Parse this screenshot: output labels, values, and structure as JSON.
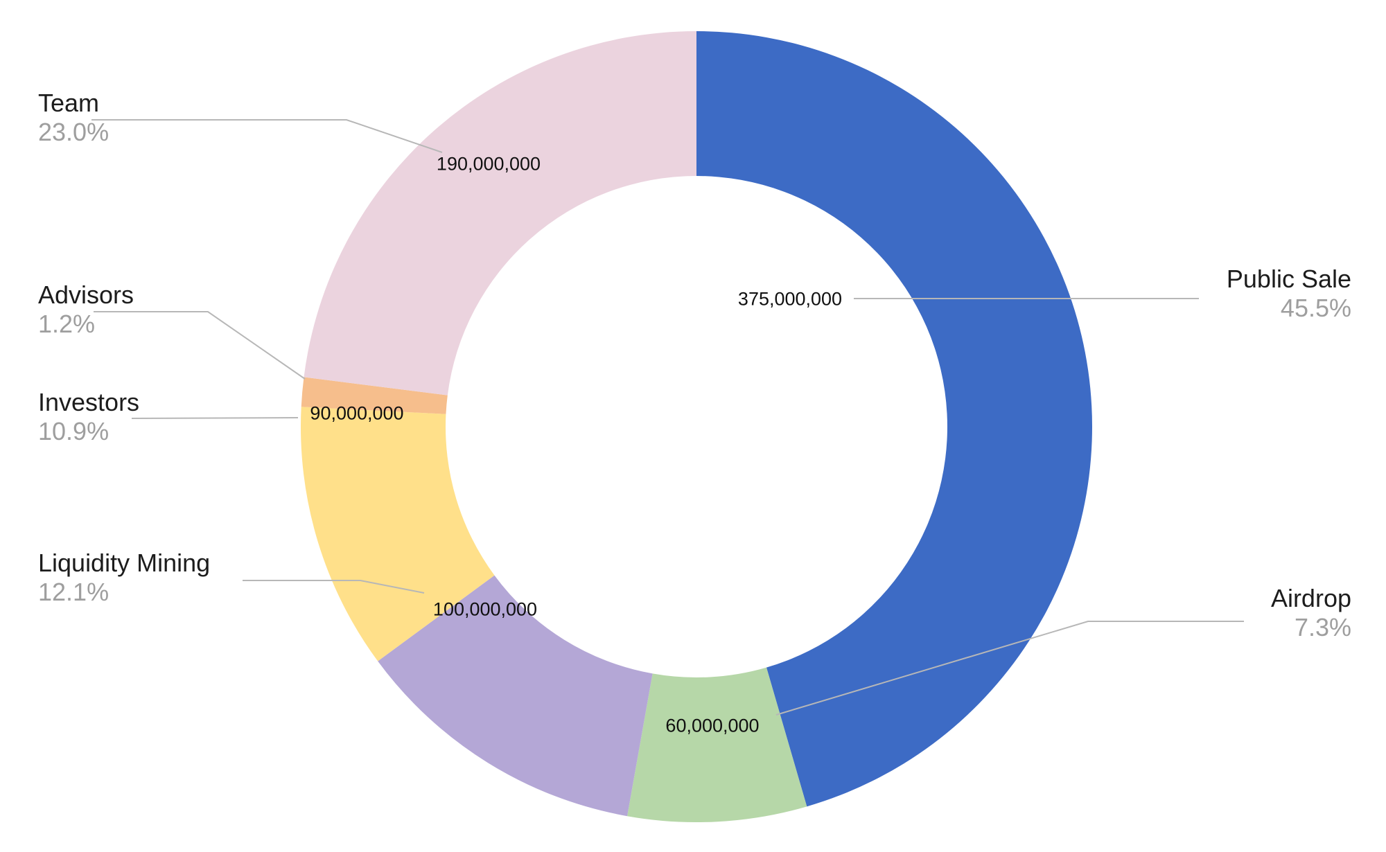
{
  "chart_data": {
    "type": "pie",
    "donut": true,
    "legend_position": "outside-labels-with-leader-lines",
    "slices": [
      {
        "id": "public-sale",
        "label": "Public Sale",
        "value": 375000000,
        "value_label": "375,000,000",
        "pct": 45.5,
        "pct_label": "45.5%",
        "color": "#3D6BC5"
      },
      {
        "id": "airdrop",
        "label": "Airdrop",
        "value": 60000000,
        "value_label": "60,000,000",
        "pct": 7.3,
        "pct_label": "7.3%",
        "color": "#B6D7A8"
      },
      {
        "id": "liquidity-mining",
        "label": "Liquidity Mining",
        "value": 100000000,
        "value_label": "100,000,000",
        "pct": 12.1,
        "pct_label": "12.1%",
        "color": "#B4A7D6"
      },
      {
        "id": "investors",
        "label": "Investors",
        "value": 90000000,
        "value_label": "90,000,000",
        "pct": 10.9,
        "pct_label": "10.9%",
        "color": "#FFE08A"
      },
      {
        "id": "advisors",
        "label": "Advisors",
        "value": null,
        "value_label": "",
        "pct": 1.2,
        "pct_label": "1.2%",
        "color": "#F6BE8C"
      },
      {
        "id": "team",
        "label": "Team",
        "value": 190000000,
        "value_label": "190,000,000",
        "pct": 23.0,
        "pct_label": "23.0%",
        "color": "#EBD3DE"
      }
    ],
    "colors": {
      "label_text": "#1c1c1c",
      "pct_text": "#9e9e9e",
      "leader_line": "#b7b7b7",
      "background": "#ffffff"
    }
  }
}
